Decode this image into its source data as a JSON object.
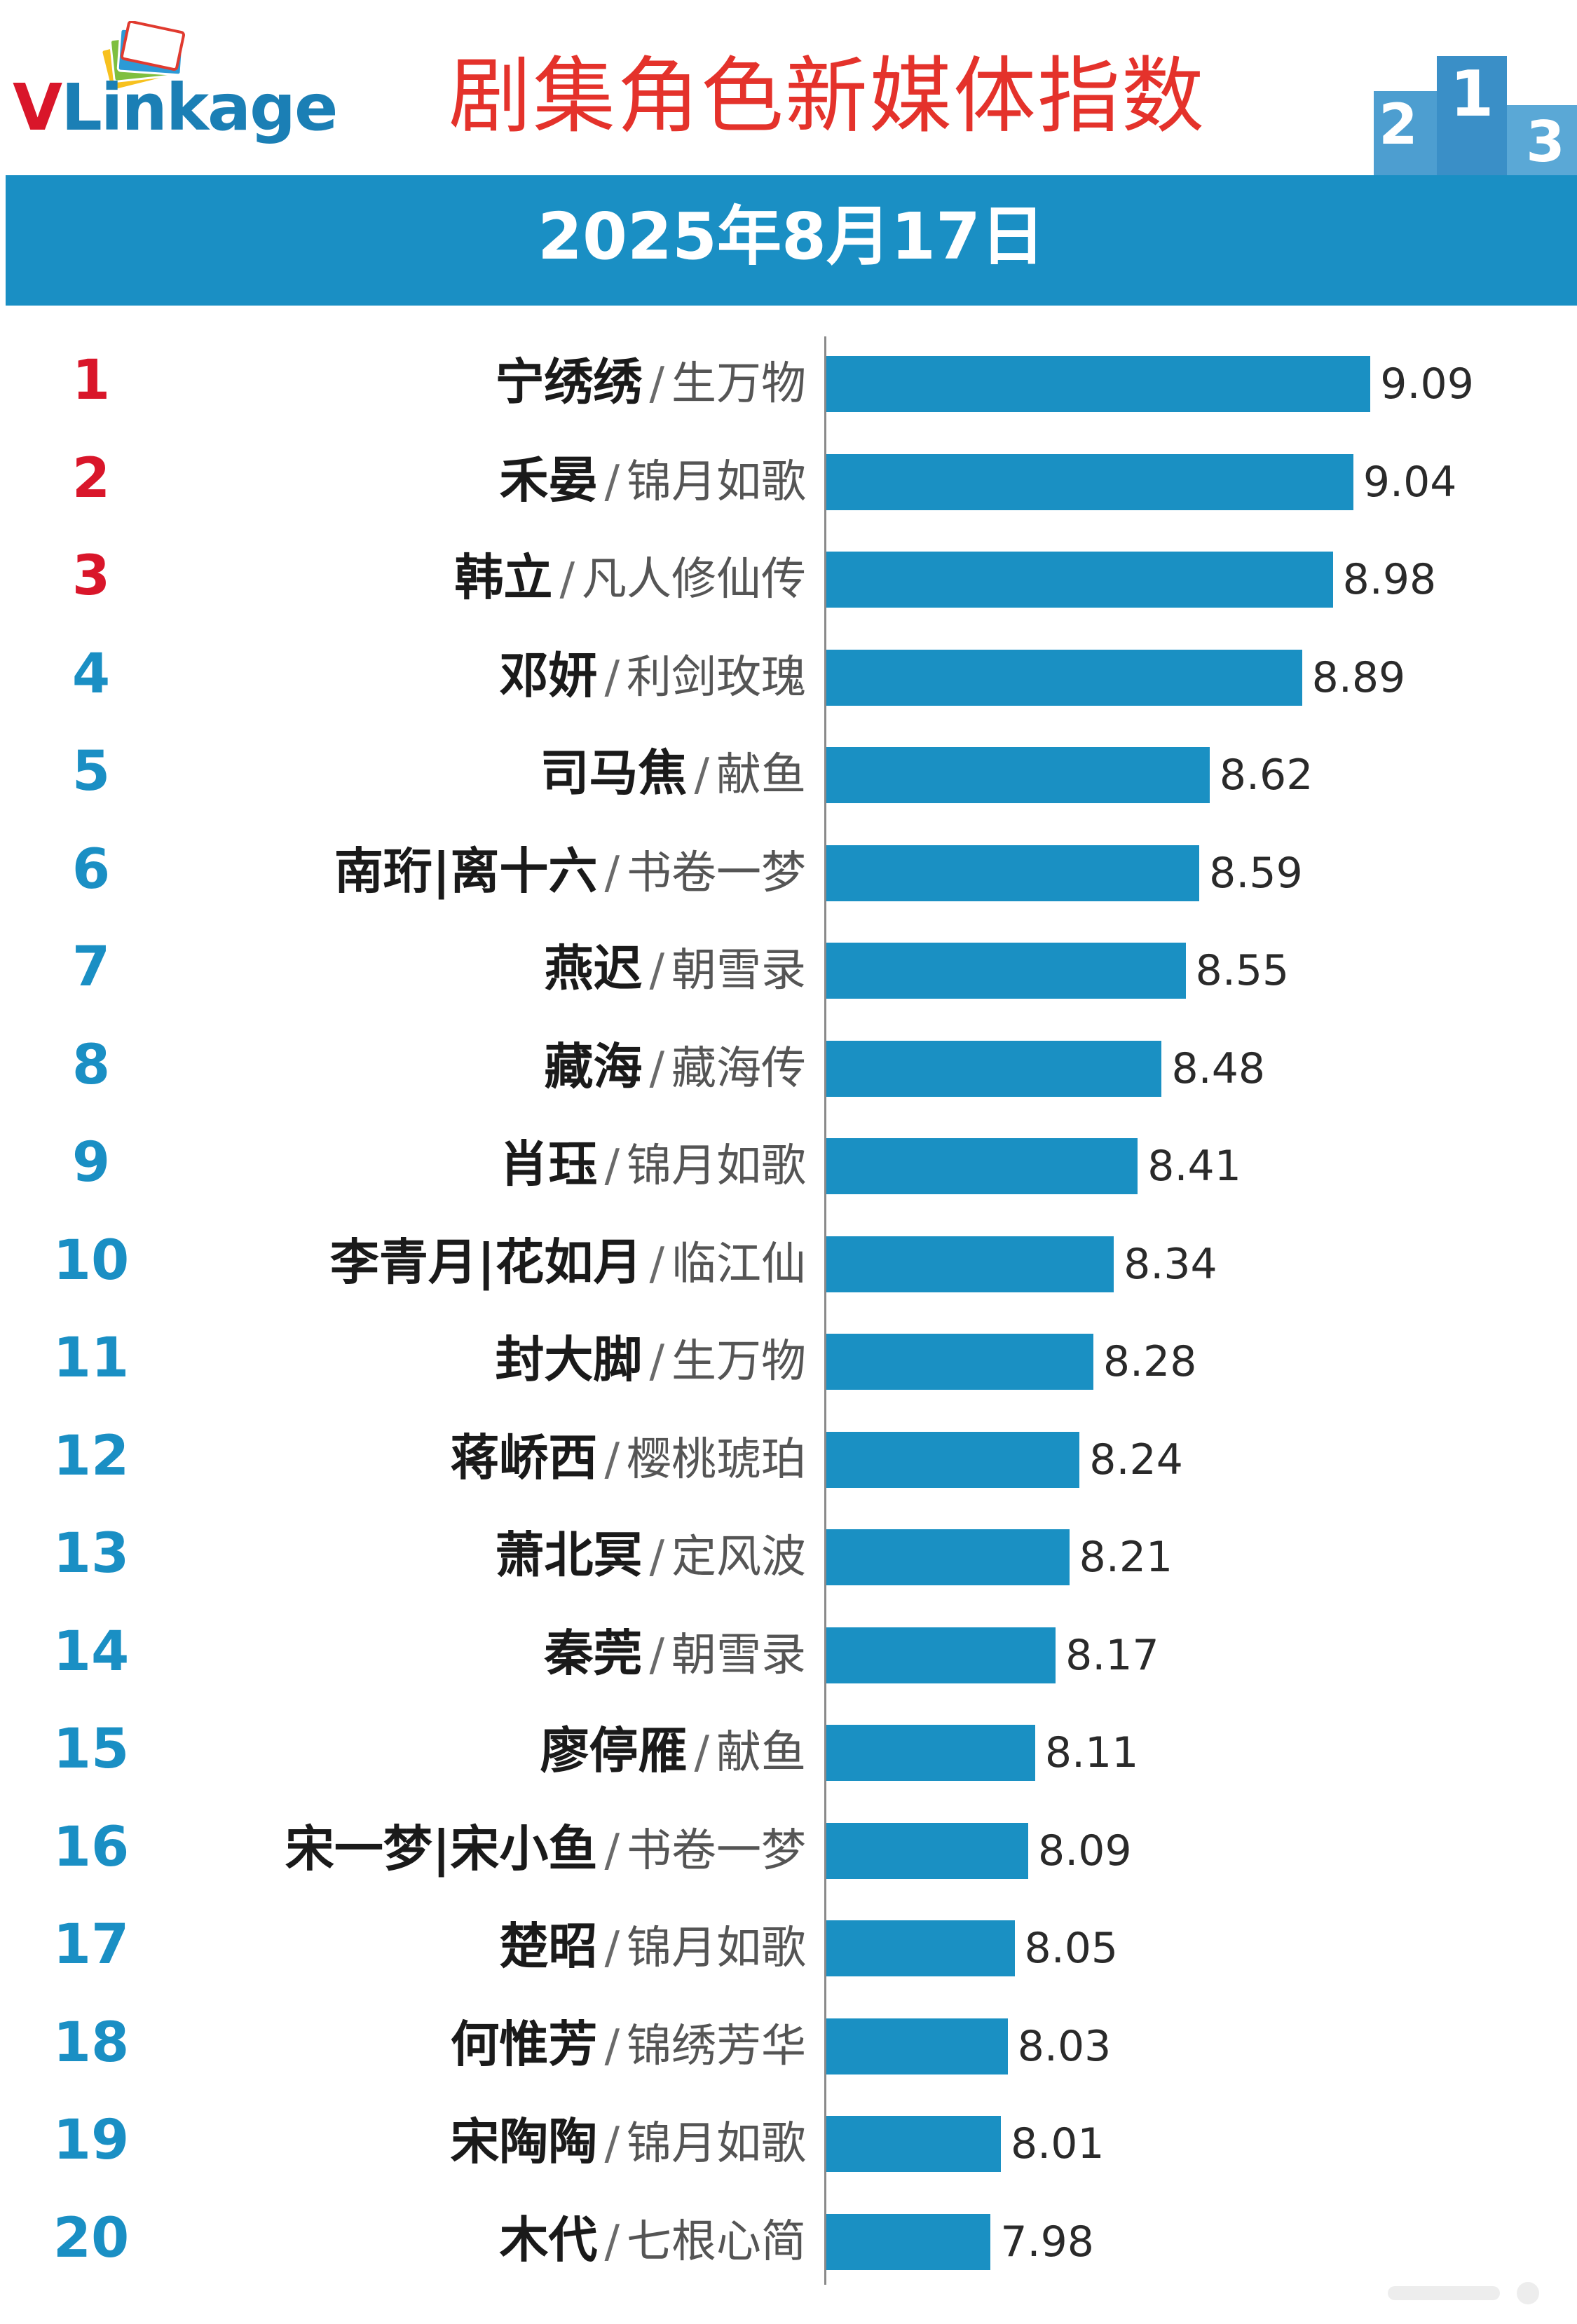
{
  "header": {
    "logo_text_v": "V",
    "logo_text_rest": "Linkage",
    "title": "剧集角色新媒体指数",
    "date": "2025年8月17日"
  },
  "colors": {
    "bar": "#1a90c3",
    "banner": "#1a8fc4",
    "title": "#e4322b",
    "top_rank": "#d9162a",
    "rank": "#1a8fc4"
  },
  "chart_data": {
    "type": "bar",
    "orientation": "horizontal",
    "title": "剧集角色新媒体指数",
    "subtitle": "2025年8月17日",
    "xlim": [
      7.5,
      9.2
    ],
    "rows": [
      {
        "rank": "1",
        "name": "宁绣绣",
        "drama": "生万物",
        "value": 9.09,
        "label": "9.09"
      },
      {
        "rank": "2",
        "name": "禾晏",
        "drama": "锦月如歌",
        "value": 9.04,
        "label": "9.04"
      },
      {
        "rank": "3",
        "name": "韩立",
        "drama": "凡人修仙传",
        "value": 8.98,
        "label": "8.98"
      },
      {
        "rank": "4",
        "name": "邓妍",
        "drama": "利剑玫瑰",
        "value": 8.89,
        "label": "8.89"
      },
      {
        "rank": "5",
        "name": "司马焦",
        "drama": "献鱼",
        "value": 8.62,
        "label": "8.62"
      },
      {
        "rank": "6",
        "name": "南珩|离十六",
        "drama": "书卷一梦",
        "value": 8.59,
        "label": "8.59"
      },
      {
        "rank": "7",
        "name": "燕迟",
        "drama": "朝雪录",
        "value": 8.55,
        "label": "8.55"
      },
      {
        "rank": "8",
        "name": "藏海",
        "drama": "藏海传",
        "value": 8.48,
        "label": "8.48"
      },
      {
        "rank": "9",
        "name": "肖珏",
        "drama": "锦月如歌",
        "value": 8.41,
        "label": "8.41"
      },
      {
        "rank": "10",
        "name": "李青月|花如月",
        "drama": "临江仙",
        "value": 8.34,
        "label": "8.34"
      },
      {
        "rank": "11",
        "name": "封大脚",
        "drama": "生万物",
        "value": 8.28,
        "label": "8.28"
      },
      {
        "rank": "12",
        "name": "蒋峤西",
        "drama": "樱桃琥珀",
        "value": 8.24,
        "label": "8.24"
      },
      {
        "rank": "13",
        "name": "萧北冥",
        "drama": "定风波",
        "value": 8.21,
        "label": "8.21"
      },
      {
        "rank": "14",
        "name": "秦莞",
        "drama": "朝雪录",
        "value": 8.17,
        "label": "8.17"
      },
      {
        "rank": "15",
        "name": "廖停雁",
        "drama": "献鱼",
        "value": 8.11,
        "label": "8.11"
      },
      {
        "rank": "16",
        "name": "宋一梦|宋小鱼",
        "drama": "书卷一梦",
        "value": 8.09,
        "label": "8.09"
      },
      {
        "rank": "17",
        "name": "楚昭",
        "drama": "锦月如歌",
        "value": 8.05,
        "label": "8.05"
      },
      {
        "rank": "18",
        "name": "何惟芳",
        "drama": "锦绣芳华",
        "value": 8.03,
        "label": "8.03"
      },
      {
        "rank": "19",
        "name": "宋陶陶",
        "drama": "锦月如歌",
        "value": 8.01,
        "label": "8.01"
      },
      {
        "rank": "20",
        "name": "木代",
        "drama": "七根心简",
        "value": 7.98,
        "label": "7.98"
      }
    ]
  }
}
